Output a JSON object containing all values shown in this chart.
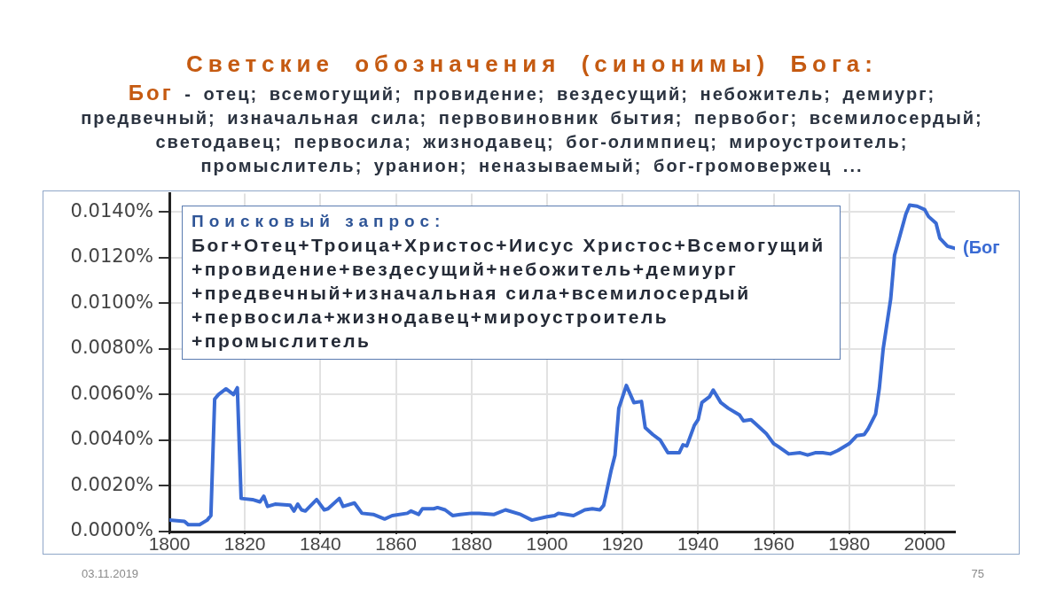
{
  "chart_data": {
    "type": "line",
    "title": "Светские обозначения (синонимы) Бога:",
    "subtitle": "Бог - отец; всемогущий; провидение; вездесущий; небожитель; демиург;\nпредвечный; изначальная сила; первовиновник бытия; первобог; всемилосердый;\nсветодавец; первосила; жизнодавец; бог-олимпиец; мироустроитель;\nпромыслитель; уранион; неназываемый; бог-громовержец ...",
    "x": [
      1800,
      1804,
      1805,
      1808,
      1810,
      1811,
      1812,
      1813,
      1815,
      1817,
      1818,
      1819,
      1822,
      1824,
      1825,
      1826,
      1828,
      1832,
      1833,
      1834,
      1835,
      1836,
      1839,
      1841,
      1842,
      1845,
      1846,
      1849,
      1851,
      1854,
      1857,
      1859,
      1863,
      1864,
      1866,
      1867,
      1870,
      1871,
      1873,
      1875,
      1877,
      1880,
      1882,
      1886,
      1889,
      1893,
      1896,
      1900,
      1902,
      1903,
      1907,
      1910,
      1912,
      1914,
      1915,
      1917,
      1918,
      1919,
      1921,
      1923,
      1925,
      1926,
      1928,
      1930,
      1932,
      1935,
      1936,
      1937,
      1939,
      1940,
      1941,
      1943,
      1944,
      1946,
      1948,
      1951,
      1952,
      1954,
      1955,
      1958,
      1960,
      1961,
      1964,
      1967,
      1969,
      1971,
      1973,
      1975,
      1977,
      1980,
      1982,
      1984,
      1985,
      1987,
      1988,
      1989,
      1991,
      1992,
      1994,
      1995,
      1996,
      1998,
      2000,
      2001,
      2003,
      2004,
      2006,
      2008
    ],
    "series": [
      {
        "name": "(Бог",
        "color": "#3a6bd4",
        "values": [
          0.0005,
          0.00045,
          0.0003,
          0.0003,
          0.0005,
          0.0007,
          0.0058,
          0.006,
          0.00625,
          0.006,
          0.0063,
          0.00145,
          0.0014,
          0.0013,
          0.00155,
          0.0011,
          0.0012,
          0.00115,
          0.0009,
          0.0012,
          0.00095,
          0.0009,
          0.0014,
          0.00095,
          0.001,
          0.00145,
          0.0011,
          0.00125,
          0.0008,
          0.00075,
          0.00055,
          0.0007,
          0.0008,
          0.0009,
          0.00075,
          0.001,
          0.001,
          0.00105,
          0.00095,
          0.0007,
          0.00075,
          0.0008,
          0.0008,
          0.00075,
          0.00095,
          0.00075,
          0.0005,
          0.00065,
          0.0007,
          0.0008,
          0.0007,
          0.00095,
          0.001,
          0.00095,
          0.00115,
          0.0027,
          0.00335,
          0.0054,
          0.0064,
          0.00565,
          0.0057,
          0.00455,
          0.00425,
          0.004,
          0.00345,
          0.00345,
          0.0038,
          0.00375,
          0.00465,
          0.0049,
          0.00565,
          0.0059,
          0.0062,
          0.00565,
          0.0054,
          0.0051,
          0.00485,
          0.0049,
          0.00475,
          0.0043,
          0.00385,
          0.00375,
          0.0034,
          0.00345,
          0.00335,
          0.00345,
          0.00345,
          0.0034,
          0.00355,
          0.00385,
          0.0042,
          0.00425,
          0.0045,
          0.00515,
          0.0063,
          0.008,
          0.0102,
          0.0121,
          0.0133,
          0.0139,
          0.0143,
          0.01425,
          0.0141,
          0.0138,
          0.0135,
          0.01285,
          0.0125,
          0.0124
        ]
      }
    ],
    "xlim": [
      1800,
      2008
    ],
    "xticks": [
      1800,
      1820,
      1840,
      1860,
      1880,
      1900,
      1920,
      1940,
      1960,
      1980,
      2000
    ],
    "ylim": [
      0,
      0.0148
    ],
    "yticks": [
      {
        "value": 0,
        "label": "0.0000%"
      },
      {
        "value": 0.002,
        "label": "0.0020%"
      },
      {
        "value": 0.004,
        "label": "0.0040%"
      },
      {
        "value": 0.006,
        "label": "0.0060%"
      },
      {
        "value": 0.008,
        "label": "0.0080%"
      },
      {
        "value": 0.01,
        "label": "0.0100%"
      },
      {
        "value": 0.012,
        "label": "0.0120%"
      },
      {
        "value": 0.014,
        "label": "0.0140%"
      }
    ],
    "grid": true,
    "legend": false,
    "annotations": [
      "Поисковый запрос:",
      "Бог+Отец+Троица+Христос+Иисус Христос+Всемогущий\n+провидение+вездесущий+небожитель+демиург\n+предвечный+изначальная сила+всемилосердый\n+первосила+жизнодавец+мироустроитель\n+промыслитель",
      "03.11.2019",
      "75"
    ]
  }
}
